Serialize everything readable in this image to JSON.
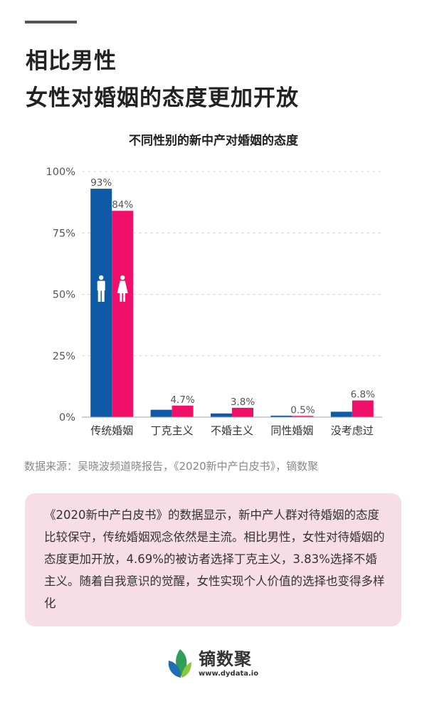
{
  "headline": {
    "line1": "相比男性",
    "line2": "女性对婚姻的态度更加开放"
  },
  "chart_data": {
    "type": "bar",
    "title": "不同性别的新中产对婚姻的态度",
    "categories": [
      "传统婚姻",
      "丁克主义",
      "不婚主义",
      "同性婚姻",
      "没考虑过"
    ],
    "series": [
      {
        "name": "男性",
        "icon": "male-person-icon",
        "color": "#0e5aa6",
        "values": [
          93,
          3.0,
          1.5,
          0.6,
          2.2
        ],
        "labels": [
          "93%",
          "",
          "",
          "",
          ""
        ]
      },
      {
        "name": "女性",
        "icon": "female-person-icon",
        "color": "#f0106a",
        "values": [
          84,
          4.7,
          3.8,
          0.5,
          6.8
        ],
        "labels": [
          "84%",
          "4.7%",
          "3.8%",
          "0.5%",
          "6.8%"
        ]
      }
    ],
    "ylim": [
      0,
      100
    ],
    "yticks": [
      0,
      25,
      50,
      75,
      100
    ],
    "ytick_labels": [
      "0%",
      "25%",
      "50%",
      "75%",
      "100%"
    ],
    "grid": true,
    "xlabel": "",
    "ylabel": ""
  },
  "source": "数据来源：吴晓波频道晓报告，《2020新中产白皮书》，镝数聚",
  "summary": "《2020新中产白皮书》的数据显示，新中产人群对待婚姻的态度比较保守，传统婚姻观念依然是主流。相比男性，女性对待婚姻的态度更加开放，4.69%的被访者选择丁克主义，3.83%选择不婚主义。随着自我意识的觉醒，女性实现个人价值的选择也变得多样化",
  "logo": {
    "name": "镝数聚",
    "url": "www.dydata.io"
  }
}
